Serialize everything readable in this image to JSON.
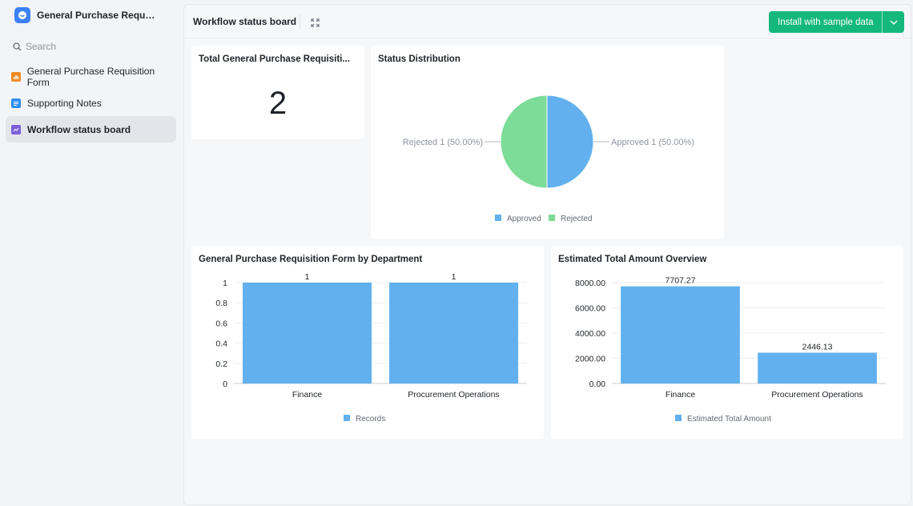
{
  "app": {
    "title": "General Purchase Requis..."
  },
  "search": {
    "placeholder": "Search"
  },
  "sidebar": {
    "items": [
      {
        "label": "General Purchase Requisition Form",
        "color": "#f08a24"
      },
      {
        "label": "Supporting Notes",
        "color": "#2f8ff0"
      },
      {
        "label": "Workflow status board",
        "color": "#7b61d9",
        "active": true
      }
    ]
  },
  "topbar": {
    "title": "Workflow status board",
    "install_label": "Install with sample data",
    "accent": "#14b87c"
  },
  "cards": {
    "total": {
      "title": "Total General Purchase Requisiti...",
      "value": "2"
    },
    "status": {
      "title": "Status Distribution"
    },
    "department": {
      "title": "General Purchase Requisition Form by Department"
    },
    "amount": {
      "title": "Estimated Total Amount Overview"
    }
  },
  "chart_data": [
    {
      "type": "pie",
      "title": "Status Distribution",
      "slices": [
        {
          "name": "Approved",
          "value": 1,
          "label": "Approved 1 (50.00%)",
          "color": "#62b1ee"
        },
        {
          "name": "Rejected",
          "value": 1,
          "label": "Rejected 1 (50.00%)",
          "color": "#7ddc97"
        }
      ],
      "legend": [
        "Approved",
        "Rejected"
      ],
      "legend_position": "bottom"
    },
    {
      "type": "bar",
      "title": "General Purchase Requisition Form by Department",
      "categories": [
        "Finance",
        "Procurement Operations"
      ],
      "series": [
        {
          "name": "Records",
          "values": [
            1,
            1
          ],
          "color": "#62b1ee"
        }
      ],
      "data_labels": [
        "1",
        "1"
      ],
      "y_ticks": [
        "0",
        "0.2",
        "0.4",
        "0.6",
        "0.8",
        "1"
      ],
      "ylim": [
        0,
        1
      ],
      "legend_position": "bottom",
      "grid": true
    },
    {
      "type": "bar",
      "title": "Estimated Total Amount Overview",
      "categories": [
        "Finance",
        "Procurement Operations"
      ],
      "series": [
        {
          "name": "Estimated Total Amount",
          "values": [
            7707.27,
            2446.13
          ],
          "color": "#62b1ee"
        }
      ],
      "data_labels": [
        "7707.27",
        "2446.13"
      ],
      "y_ticks": [
        "0.00",
        "2000.00",
        "4000.00",
        "6000.00",
        "8000.00"
      ],
      "ylim": [
        0,
        8000
      ],
      "legend_position": "bottom",
      "grid": true
    }
  ]
}
